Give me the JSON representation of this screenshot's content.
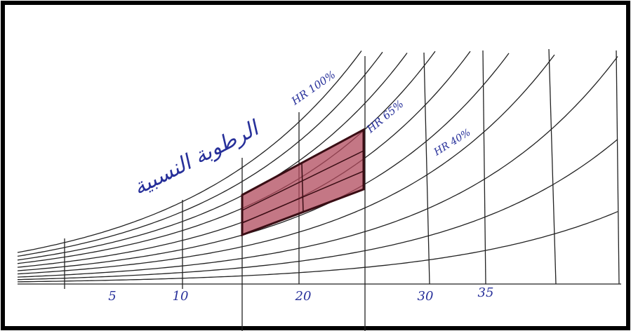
{
  "curve_labels": [
    "HR 100%",
    "HR 65%",
    "HR 40%"
  ],
  "x_axis_labels": [
    "5",
    "10",
    "20",
    "30",
    "35"
  ],
  "annotation": "الرطوبة النسبية"
}
